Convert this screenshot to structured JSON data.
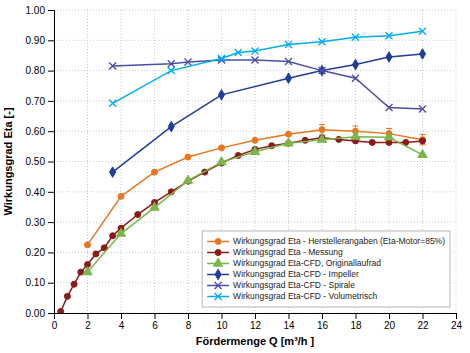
{
  "chart_data": {
    "type": "line",
    "xlabel": "Fördermenge Q [m³/h ]",
    "ylabel": "Wirkungsgrad Eta [-]",
    "xlim": [
      0,
      24
    ],
    "ylim": [
      0.0,
      1.0
    ],
    "xticks": [
      0,
      2,
      4,
      6,
      8,
      10,
      12,
      14,
      16,
      18,
      20,
      22,
      24
    ],
    "yticks": [
      {
        "value": 0.0,
        "label": "0.00"
      },
      {
        "value": 0.1,
        "label": "0.10"
      },
      {
        "value": 0.2,
        "label": "0.20"
      },
      {
        "value": 0.3,
        "label": "0.30"
      },
      {
        "value": 0.4,
        "label": "0.40"
      },
      {
        "value": 0.5,
        "label": "0.50"
      },
      {
        "value": 0.6,
        "label": "0.60"
      },
      {
        "value": 0.7,
        "label": "0.70"
      },
      {
        "value": 0.8,
        "label": "0.80"
      },
      {
        "value": 0.9,
        "label": "0.90"
      },
      {
        "value": 1.0,
        "label": "1.00"
      }
    ],
    "grid": true,
    "legend": "bottom-right",
    "series": [
      {
        "name": "Wirkungsgrad Eta - Herstellerangaben (Eta-Motor=85%)",
        "color": "#E87722",
        "marker": "circle",
        "x": [
          2,
          4,
          6,
          8,
          10,
          12,
          14,
          16,
          18,
          20,
          22
        ],
        "values": [
          0.225,
          0.385,
          0.465,
          0.515,
          0.545,
          0.57,
          0.59,
          0.605,
          0.6,
          0.592,
          0.572
        ],
        "error": [
          0,
          0,
          0,
          0,
          0,
          0,
          0,
          0.017,
          0.017,
          0.017,
          0.017
        ]
      },
      {
        "name": "Wirkungsgrad Eta - Messung",
        "color": "#8B1A1A",
        "marker": "circle",
        "x": [
          0.4,
          0.8,
          1.2,
          1.6,
          2.0,
          2.5,
          3.0,
          3.5,
          4,
          5,
          6,
          7,
          8,
          9,
          10,
          11,
          12,
          13,
          14,
          15,
          16,
          17,
          18,
          19,
          20,
          21,
          22
        ],
        "values": [
          0.005,
          0.055,
          0.095,
          0.135,
          0.16,
          0.195,
          0.215,
          0.255,
          0.28,
          0.325,
          0.365,
          0.4,
          0.435,
          0.465,
          0.495,
          0.52,
          0.54,
          0.552,
          0.56,
          0.57,
          0.578,
          0.573,
          0.568,
          0.563,
          0.563,
          0.563,
          0.568
        ]
      },
      {
        "name": "Wirkungsgrad Eta-CFD, Originallaufrad",
        "color": "#7AB648",
        "marker": "triangle",
        "x": [
          2,
          4,
          6,
          8,
          10,
          12,
          14,
          16,
          18,
          20,
          22
        ],
        "values": [
          0.135,
          0.262,
          0.348,
          0.437,
          0.498,
          0.532,
          0.56,
          0.572,
          0.582,
          0.58,
          0.522
        ]
      },
      {
        "name": "Wirkungsgrad Eta-CFD - Impeller",
        "color": "#1F3D99",
        "marker": "diamond",
        "x": [
          3.5,
          7,
          10,
          14,
          16,
          18,
          20,
          22
        ],
        "values": [
          0.465,
          0.615,
          0.72,
          0.775,
          0.8,
          0.82,
          0.845,
          0.855
        ]
      },
      {
        "name": "Wirkungsgrad Eta-CFD - Spirale",
        "color": "#4B4FA6",
        "marker": "x",
        "x": [
          3.5,
          7,
          8,
          10,
          12,
          14,
          16,
          18,
          20,
          22
        ],
        "values": [
          0.815,
          0.823,
          0.828,
          0.835,
          0.835,
          0.83,
          0.8,
          0.775,
          0.678,
          0.673
        ]
      },
      {
        "name": "Wirkungsgrad Eta-CFD - Volumetrisch",
        "color": "#00AEEF",
        "marker": "x",
        "x": [
          3.5,
          7,
          10,
          11,
          12,
          14,
          16,
          18,
          20,
          22
        ],
        "values": [
          0.692,
          0.8,
          0.84,
          0.86,
          0.865,
          0.886,
          0.895,
          0.91,
          0.915,
          0.93
        ]
      }
    ]
  }
}
